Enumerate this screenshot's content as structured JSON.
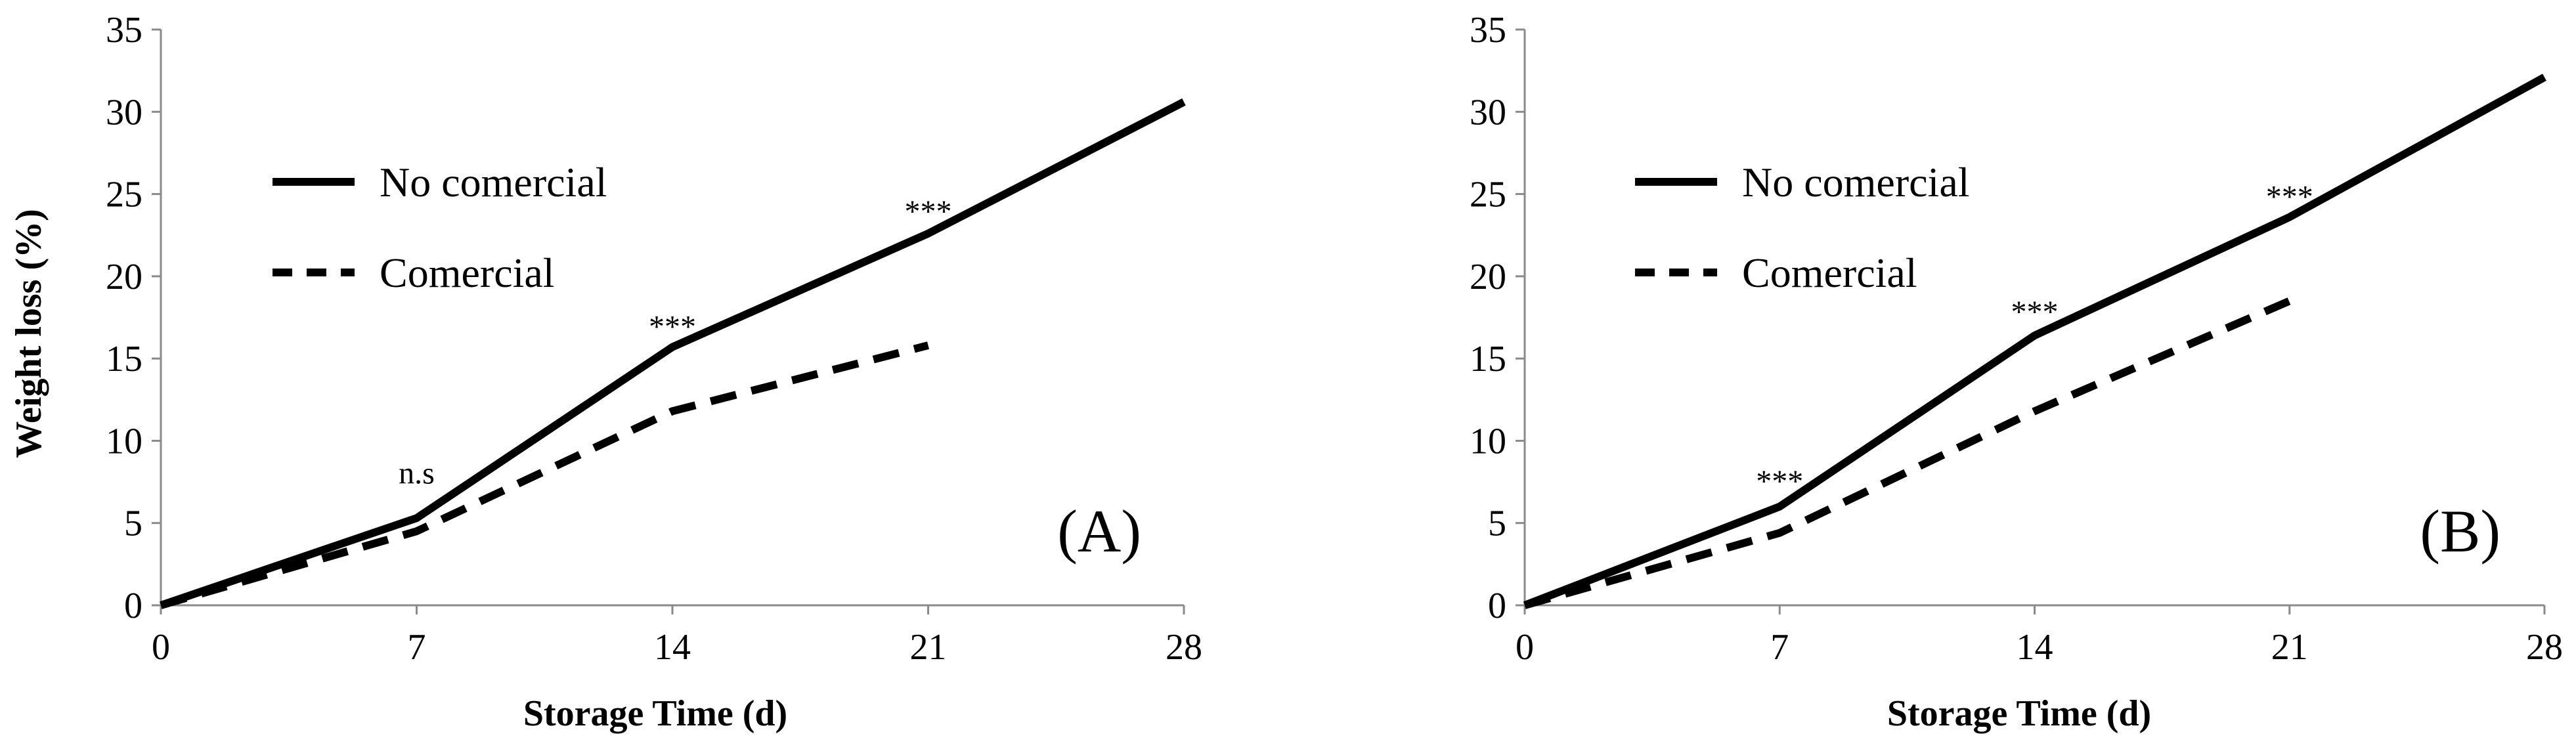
{
  "chart_data": [
    {
      "type": "line",
      "panel_label": "(A)",
      "xlabel": "Storage Time (d)",
      "ylabel": "Weight loss (%)",
      "xlim": [
        0,
        28
      ],
      "ylim": [
        0,
        35
      ],
      "xticks": [
        "0",
        "7",
        "14",
        "21",
        "28"
      ],
      "yticks": [
        "0",
        "5",
        "10",
        "15",
        "20",
        "25",
        "30",
        "35"
      ],
      "grid": false,
      "legend_position": "upper-left",
      "series": [
        {
          "name": "No comercial",
          "style": "solid",
          "x": [
            0,
            7,
            14,
            21,
            28
          ],
          "y": [
            0,
            5.3,
            15.7,
            22.6,
            30.6
          ]
        },
        {
          "name": "Comercial",
          "style": "dashed",
          "x": [
            0,
            7,
            14,
            21
          ],
          "y": [
            0,
            4.5,
            11.8,
            15.8
          ]
        }
      ],
      "annotations": [
        {
          "text": "n.s",
          "x": 7,
          "y": 7.4
        },
        {
          "text": "***",
          "x": 14,
          "y": 17.1
        },
        {
          "text": "***",
          "x": 21,
          "y": 24.1
        }
      ]
    },
    {
      "type": "line",
      "panel_label": "(B)",
      "xlabel": "Storage Time (d)",
      "ylabel": "",
      "xlim": [
        0,
        28
      ],
      "ylim": [
        0,
        35
      ],
      "xticks": [
        "0",
        "7",
        "14",
        "21",
        "28"
      ],
      "yticks": [
        "0",
        "5",
        "10",
        "15",
        "20",
        "25",
        "30",
        "35"
      ],
      "grid": false,
      "legend_position": "upper-left",
      "series": [
        {
          "name": "No comercial",
          "style": "solid",
          "x": [
            0,
            7,
            14,
            21,
            28
          ],
          "y": [
            0,
            6.0,
            16.4,
            23.6,
            32.1
          ]
        },
        {
          "name": "Comercial",
          "style": "dashed",
          "x": [
            0,
            7,
            14,
            21
          ],
          "y": [
            0,
            4.4,
            11.8,
            18.5
          ]
        }
      ],
      "annotations": [
        {
          "text": "***",
          "x": 7,
          "y": 7.7
        },
        {
          "text": "***",
          "x": 14,
          "y": 18.0
        },
        {
          "text": "***",
          "x": 21,
          "y": 25.0
        }
      ]
    }
  ]
}
